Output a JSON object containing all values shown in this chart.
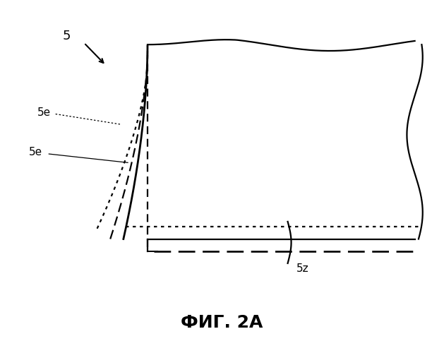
{
  "title": "ФИГ. 2А",
  "title_fontsize": 18,
  "title_fontweight": "bold",
  "background_color": "#ffffff",
  "label_5": "5",
  "label_5e_upper": "5e",
  "label_5e_lower": "5e",
  "label_5z": "5z",
  "fig_width": 6.29,
  "fig_height": 5.0,
  "dpi": 100
}
